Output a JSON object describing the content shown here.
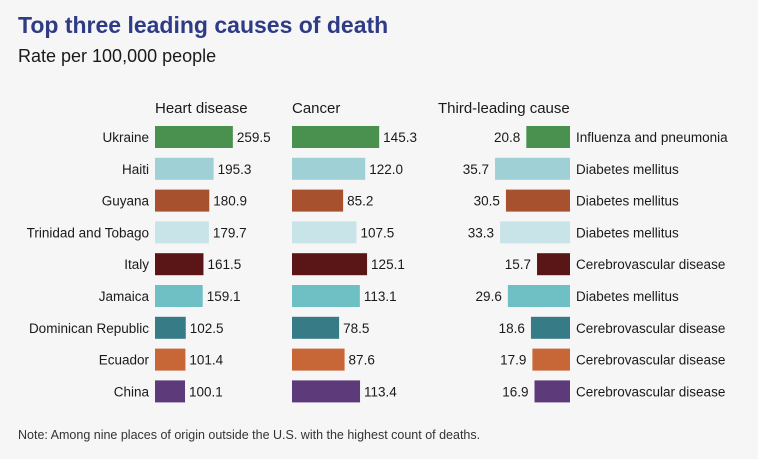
{
  "title": "Top three leading causes of death",
  "subtitle": "Rate per 100,000 people",
  "note": "Note: Among nine places of origin outside the U.S. with the highest count of deaths.",
  "chart_data": {
    "type": "bar",
    "orientation": "horizontal",
    "panels": [
      "Heart disease",
      "Cancer",
      "Third-leading cause"
    ],
    "categories": [
      "Ukraine",
      "Haiti",
      "Guyana",
      "Trinidad and Tobago",
      "Italy",
      "Jamaica",
      "Dominican Republic",
      "Ecuador",
      "China"
    ],
    "series": [
      {
        "name": "Heart disease",
        "values": [
          259.5,
          195.3,
          180.9,
          179.7,
          161.5,
          159.1,
          102.5,
          101.4,
          100.1
        ]
      },
      {
        "name": "Cancer",
        "values": [
          145.3,
          122.0,
          85.2,
          107.5,
          125.1,
          113.1,
          78.5,
          87.6,
          113.4
        ]
      },
      {
        "name": "Third-leading cause",
        "values": [
          20.8,
          35.7,
          30.5,
          33.3,
          15.7,
          29.6,
          18.6,
          17.9,
          16.9
        ]
      }
    ],
    "third_cause_labels": [
      "Influenza and pneumonia",
      "Diabetes mellitus",
      "Diabetes mellitus",
      "Diabetes mellitus",
      "Cerebrovascular disease",
      "Diabetes mellitus",
      "Cerebrovascular disease",
      "Cerebrovascular disease",
      "Cerebrovascular disease"
    ],
    "colors": [
      "#4a9150",
      "#9fd0d5",
      "#a8512f",
      "#c9e4e8",
      "#5a1616",
      "#6ec0c5",
      "#367b85",
      "#c76636",
      "#5d3a7a"
    ],
    "grid": false,
    "legend": "none"
  }
}
